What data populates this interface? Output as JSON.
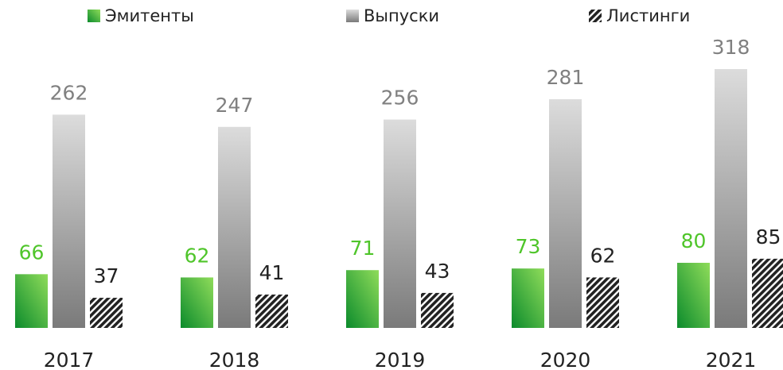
{
  "chart_data": {
    "type": "bar",
    "categories": [
      "2017",
      "2018",
      "2019",
      "2020",
      "2021"
    ],
    "series": [
      {
        "name": "Эмитенты",
        "color": "#3cb043",
        "values": [
          66,
          62,
          71,
          73,
          80
        ]
      },
      {
        "name": "Выпуски",
        "color": "#a6a6a6",
        "values": [
          262,
          247,
          256,
          281,
          318
        ]
      },
      {
        "name": "Листинги",
        "color": "#222222",
        "values": [
          37,
          41,
          43,
          62,
          85
        ]
      }
    ]
  }
}
